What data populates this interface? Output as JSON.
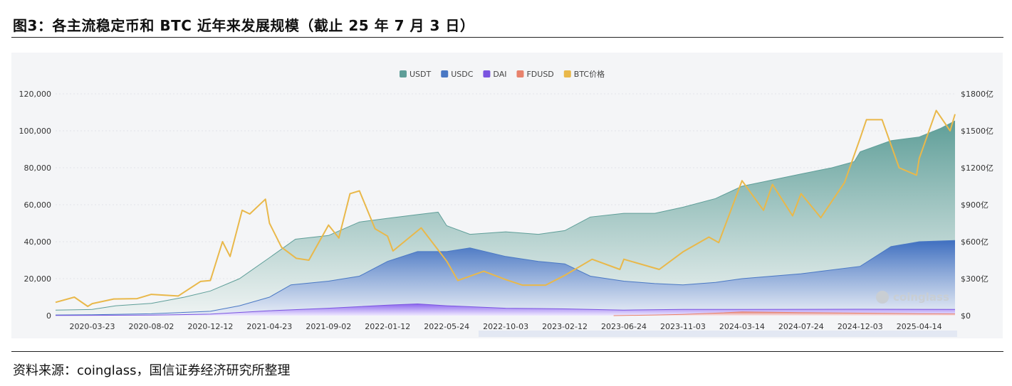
{
  "figure": {
    "title": "图3：各主流稳定币和 BTC 近年来发展规模（截止 25 年 7 月 3 日）",
    "source": "资料来源：coinglass，国信证券经济研究所整理",
    "watermark": "coinglass"
  },
  "chart_data": {
    "type": "area",
    "x_ticks": [
      "2020-03-23",
      "2020-08-02",
      "2020-12-12",
      "2021-04-23",
      "2021-09-02",
      "2022-01-12",
      "2022-05-24",
      "2022-10-03",
      "2023-02-12",
      "2023-06-24",
      "2023-11-03",
      "2024-03-14",
      "2024-07-24",
      "2024-12-03",
      "2025-04-14"
    ],
    "x_range": [
      "2020-01-01",
      "2025-07-03"
    ],
    "left_axis": {
      "ticks": [
        "0",
        "20,000",
        "40,000",
        "60,000",
        "80,000",
        "100,000",
        "120,000"
      ],
      "ylim": [
        0,
        120000
      ]
    },
    "right_axis": {
      "ticks": [
        "$0",
        "$300亿",
        "$600亿",
        "$900亿",
        "$1200亿",
        "$1500亿",
        "$1800亿"
      ],
      "ylim": [
        0,
        1800
      ]
    },
    "legend": [
      "USDT",
      "USDC",
      "DAI",
      "FDUSD",
      "BTC价格"
    ],
    "legend_position": "top-center",
    "colors": {
      "USDT": "#5e9e98",
      "USDC": "#4a78c4",
      "DAI": "#7b55e0",
      "FDUSD": "#e8826c",
      "BTC价格": "#e9b84a"
    },
    "series": [
      {
        "name": "USDT",
        "axis": "right",
        "points": [
          [
            "2020-01-01",
            45
          ],
          [
            "2020-03-23",
            50
          ],
          [
            "2020-05-15",
            80
          ],
          [
            "2020-08-02",
            100
          ],
          [
            "2020-10-15",
            150
          ],
          [
            "2020-12-12",
            200
          ],
          [
            "2021-02-15",
            300
          ],
          [
            "2021-04-23",
            470
          ],
          [
            "2021-06-20",
            620
          ],
          [
            "2021-09-02",
            650
          ],
          [
            "2021-11-10",
            760
          ],
          [
            "2022-01-12",
            790
          ],
          [
            "2022-03-20",
            820
          ],
          [
            "2022-05-05",
            840
          ],
          [
            "2022-05-24",
            730
          ],
          [
            "2022-07-15",
            660
          ],
          [
            "2022-10-03",
            680
          ],
          [
            "2022-12-15",
            660
          ],
          [
            "2023-02-12",
            690
          ],
          [
            "2023-04-10",
            800
          ],
          [
            "2023-06-24",
            830
          ],
          [
            "2023-09-01",
            830
          ],
          [
            "2023-11-03",
            880
          ],
          [
            "2024-01-15",
            950
          ],
          [
            "2024-03-14",
            1050
          ],
          [
            "2024-05-20",
            1100
          ],
          [
            "2024-07-24",
            1150
          ],
          [
            "2024-10-01",
            1200
          ],
          [
            "2024-11-20",
            1250
          ],
          [
            "2024-12-03",
            1330
          ],
          [
            "2025-02-10",
            1420
          ],
          [
            "2025-04-14",
            1450
          ],
          [
            "2025-06-01",
            1520
          ],
          [
            "2025-07-03",
            1580
          ]
        ]
      },
      {
        "name": "USDC",
        "axis": "right",
        "points": [
          [
            "2020-01-01",
            5
          ],
          [
            "2020-03-23",
            7
          ],
          [
            "2020-08-02",
            15
          ],
          [
            "2020-12-12",
            35
          ],
          [
            "2021-02-15",
            80
          ],
          [
            "2021-04-23",
            150
          ],
          [
            "2021-06-10",
            250
          ],
          [
            "2021-09-02",
            280
          ],
          [
            "2021-11-10",
            320
          ],
          [
            "2022-01-12",
            440
          ],
          [
            "2022-03-20",
            520
          ],
          [
            "2022-05-24",
            520
          ],
          [
            "2022-07-15",
            550
          ],
          [
            "2022-10-03",
            480
          ],
          [
            "2022-12-15",
            440
          ],
          [
            "2023-02-12",
            420
          ],
          [
            "2023-04-10",
            320
          ],
          [
            "2023-06-24",
            280
          ],
          [
            "2023-09-01",
            260
          ],
          [
            "2023-11-03",
            250
          ],
          [
            "2024-01-15",
            270
          ],
          [
            "2024-03-14",
            300
          ],
          [
            "2024-07-24",
            340
          ],
          [
            "2024-12-03",
            400
          ],
          [
            "2025-02-10",
            560
          ],
          [
            "2025-04-14",
            600
          ],
          [
            "2025-07-03",
            610
          ]
        ]
      },
      {
        "name": "DAI",
        "axis": "right",
        "points": [
          [
            "2020-01-01",
            1
          ],
          [
            "2020-08-02",
            4
          ],
          [
            "2020-12-12",
            12
          ],
          [
            "2021-04-23",
            40
          ],
          [
            "2021-09-02",
            60
          ],
          [
            "2022-01-12",
            85
          ],
          [
            "2022-03-20",
            95
          ],
          [
            "2022-05-24",
            80
          ],
          [
            "2022-10-03",
            60
          ],
          [
            "2023-02-12",
            55
          ],
          [
            "2023-06-24",
            45
          ],
          [
            "2023-11-03",
            50
          ],
          [
            "2024-03-14",
            50
          ],
          [
            "2024-12-03",
            52
          ],
          [
            "2025-07-03",
            50
          ]
        ]
      },
      {
        "name": "FDUSD",
        "axis": "right",
        "points": [
          [
            "2023-06-01",
            0
          ],
          [
            "2023-09-01",
            5
          ],
          [
            "2023-11-03",
            10
          ],
          [
            "2024-01-15",
            20
          ],
          [
            "2024-03-14",
            30
          ],
          [
            "2024-07-24",
            25
          ],
          [
            "2024-12-03",
            20
          ],
          [
            "2025-04-14",
            15
          ],
          [
            "2025-07-03",
            14
          ]
        ]
      },
      {
        "name": "BTC价格",
        "axis": "left",
        "points": [
          [
            "2020-01-01",
            7200
          ],
          [
            "2020-02-12",
            10000
          ],
          [
            "2020-03-13",
            5000
          ],
          [
            "2020-03-23",
            6500
          ],
          [
            "2020-05-10",
            9000
          ],
          [
            "2020-07-01",
            9200
          ],
          [
            "2020-08-02",
            11500
          ],
          [
            "2020-10-01",
            10600
          ],
          [
            "2020-11-20",
            18500
          ],
          [
            "2020-12-12",
            19000
          ],
          [
            "2021-01-08",
            40000
          ],
          [
            "2021-01-25",
            32000
          ],
          [
            "2021-02-21",
            57000
          ],
          [
            "2021-03-10",
            55000
          ],
          [
            "2021-04-14",
            63000
          ],
          [
            "2021-04-23",
            50000
          ],
          [
            "2021-05-20",
            37000
          ],
          [
            "2021-06-22",
            31000
          ],
          [
            "2021-07-20",
            30000
          ],
          [
            "2021-09-02",
            49000
          ],
          [
            "2021-09-25",
            42000
          ],
          [
            "2021-10-20",
            66000
          ],
          [
            "2021-11-10",
            67500
          ],
          [
            "2021-12-15",
            47000
          ],
          [
            "2022-01-12",
            43000
          ],
          [
            "2022-01-24",
            35000
          ],
          [
            "2022-03-28",
            47500
          ],
          [
            "2022-05-24",
            29500
          ],
          [
            "2022-06-18",
            19000
          ],
          [
            "2022-08-15",
            24000
          ],
          [
            "2022-10-03",
            19500
          ],
          [
            "2022-11-09",
            16500
          ],
          [
            "2022-12-31",
            16500
          ],
          [
            "2023-02-12",
            21800
          ],
          [
            "2023-04-14",
            30500
          ],
          [
            "2023-06-15",
            25000
          ],
          [
            "2023-06-24",
            30500
          ],
          [
            "2023-09-11",
            25000
          ],
          [
            "2023-11-03",
            34500
          ],
          [
            "2023-12-31",
            42500
          ],
          [
            "2024-01-22",
            39500
          ],
          [
            "2024-03-14",
            73000
          ],
          [
            "2024-05-01",
            57000
          ],
          [
            "2024-05-21",
            71000
          ],
          [
            "2024-07-05",
            54000
          ],
          [
            "2024-07-24",
            66000
          ],
          [
            "2024-09-06",
            53000
          ],
          [
            "2024-10-29",
            72000
          ],
          [
            "2024-12-03",
            96000
          ],
          [
            "2024-12-17",
            106000
          ],
          [
            "2025-01-21",
            106000
          ],
          [
            "2025-02-28",
            80000
          ],
          [
            "2025-04-08",
            76000
          ],
          [
            "2025-04-14",
            85000
          ],
          [
            "2025-05-22",
            111000
          ],
          [
            "2025-06-22",
            100000
          ],
          [
            "2025-07-03",
            109000
          ]
        ]
      }
    ],
    "grid": true
  }
}
